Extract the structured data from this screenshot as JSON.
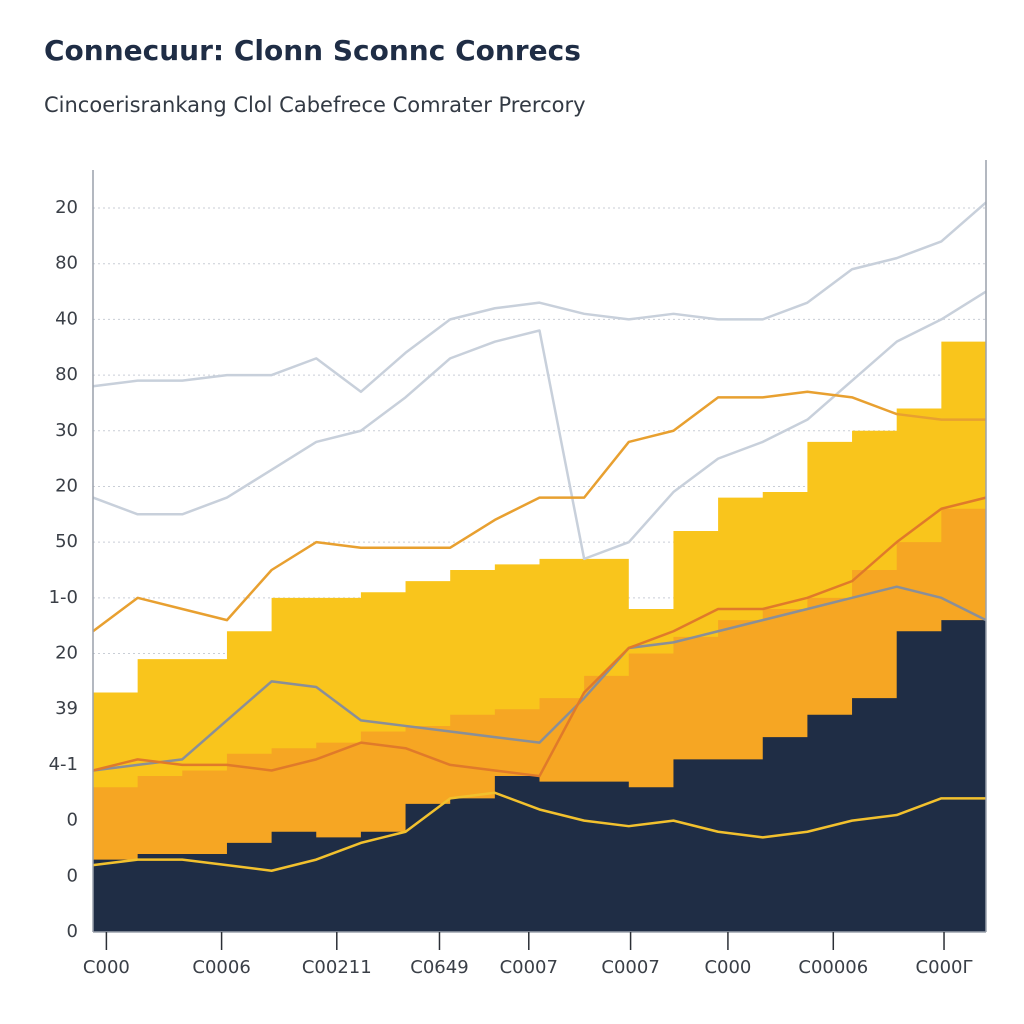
{
  "chart_data": {
    "type": "area",
    "title": "Connecuur: Clonn Sconnc Conrecs",
    "subtitle": "Cincoerisrankang Clol Cabefrece Comrater Prercory",
    "x": [
      0,
      5,
      10,
      15,
      20,
      25,
      30,
      35,
      40,
      45,
      50,
      55,
      60,
      65,
      70,
      75,
      80,
      85,
      90,
      95,
      100
    ],
    "xlim": [
      0,
      100
    ],
    "xticks": [
      {
        "value": 1.5,
        "label": "C000"
      },
      {
        "value": 14.4,
        "label": "C0006"
      },
      {
        "value": 27.3,
        "label": "C00211"
      },
      {
        "value": 38.8,
        "label": "C0649"
      },
      {
        "value": 48.8,
        "label": "C0007"
      },
      {
        "value": 60.2,
        "label": "C0007"
      },
      {
        "value": 71.1,
        "label": "C000"
      },
      {
        "value": 82.9,
        "label": "C00006"
      },
      {
        "value": 95.3,
        "label": "C000Γ"
      }
    ],
    "ylim": [
      0,
      13
    ],
    "yticks": [
      {
        "value": 0,
        "label": "0"
      },
      {
        "value": 1,
        "label": "0"
      },
      {
        "value": 2,
        "label": "0"
      },
      {
        "value": 3,
        "label": "4-1"
      },
      {
        "value": 4,
        "label": "39"
      },
      {
        "value": 5,
        "label": "20"
      },
      {
        "value": 6,
        "label": "1-0"
      },
      {
        "value": 7,
        "label": "50"
      },
      {
        "value": 8,
        "label": "20"
      },
      {
        "value": 9,
        "label": "30"
      },
      {
        "value": 10,
        "label": "80"
      },
      {
        "value": 11,
        "label": "40"
      },
      {
        "value": 12,
        "label": "80"
      },
      {
        "value": 13,
        "label": "20"
      }
    ],
    "grid": true,
    "series": [
      {
        "style": "area",
        "color": "#f9c51c",
        "values": [
          4.3,
          4.9,
          4.9,
          5.4,
          6.0,
          6.0,
          6.1,
          6.3,
          6.5,
          6.6,
          6.7,
          6.7,
          5.8,
          7.2,
          7.8,
          7.9,
          8.8,
          9.0,
          9.4,
          10.6,
          11.0
        ]
      },
      {
        "style": "area",
        "color": "#f6a623",
        "values": [
          2.6,
          2.8,
          2.9,
          3.2,
          3.3,
          3.4,
          3.6,
          3.7,
          3.9,
          4.0,
          4.2,
          4.6,
          5.0,
          5.3,
          5.6,
          5.8,
          6.0,
          6.5,
          7.0,
          7.6,
          7.8
        ]
      },
      {
        "style": "area",
        "color": "#1f2d45",
        "values": [
          1.3,
          1.4,
          1.4,
          1.6,
          1.8,
          1.7,
          1.8,
          2.3,
          2.4,
          2.8,
          2.7,
          2.7,
          2.6,
          3.1,
          3.1,
          3.5,
          3.9,
          4.2,
          5.4,
          5.6,
          6.7
        ]
      },
      {
        "style": "line",
        "color": "#c8d0db",
        "values": [
          9.8,
          9.9,
          9.9,
          10.0,
          10.0,
          10.3,
          9.7,
          10.4,
          11.0,
          11.2,
          11.3,
          11.1,
          11.0,
          11.1,
          11.0,
          11.0,
          11.3,
          11.9,
          12.1,
          12.4,
          13.1
        ]
      },
      {
        "style": "line",
        "color": "#c8d0db",
        "values": [
          7.8,
          7.5,
          7.5,
          7.8,
          8.3,
          8.8,
          9.0,
          9.6,
          10.3,
          10.6,
          10.8,
          6.7,
          7.0,
          7.9,
          8.5,
          8.8,
          9.2,
          9.9,
          10.6,
          11.0,
          11.5
        ]
      },
      {
        "style": "line",
        "color": "#8a8f98",
        "values": [
          2.9,
          3.0,
          3.1,
          3.8,
          4.5,
          4.4,
          3.8,
          3.7,
          3.6,
          3.5,
          3.4,
          4.2,
          5.1,
          5.2,
          5.4,
          5.6,
          5.8,
          6.0,
          6.2,
          6.0,
          5.6
        ]
      },
      {
        "style": "line",
        "color": "#e07a2a",
        "values": [
          2.9,
          3.1,
          3.0,
          3.0,
          2.9,
          3.1,
          3.4,
          3.3,
          3.0,
          2.9,
          2.8,
          4.3,
          5.1,
          5.4,
          5.8,
          5.8,
          6.0,
          6.3,
          7.0,
          7.6,
          7.8
        ]
      },
      {
        "style": "line",
        "color": "#e8a030",
        "values": [
          5.4,
          6.0,
          5.8,
          5.6,
          6.5,
          7.0,
          6.9,
          6.9,
          6.9,
          7.4,
          7.8,
          7.8,
          8.8,
          9.0,
          9.6,
          9.6,
          9.7,
          9.6,
          9.3,
          9.2,
          9.2
        ]
      },
      {
        "style": "line",
        "color": "#f2c12e",
        "values": [
          1.2,
          1.3,
          1.3,
          1.2,
          1.1,
          1.3,
          1.6,
          1.8,
          2.4,
          2.5,
          2.2,
          2.0,
          1.9,
          2.0,
          1.8,
          1.7,
          1.8,
          2.0,
          2.1,
          2.4,
          2.4
        ]
      }
    ]
  }
}
